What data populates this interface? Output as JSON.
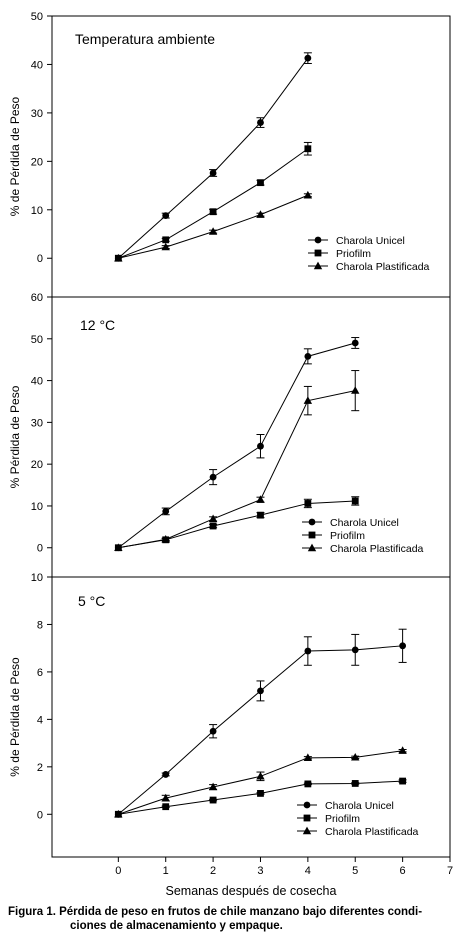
{
  "x_axis": {
    "label": "Semanas después de cosecha",
    "ticks": [
      "0",
      "1",
      "2",
      "3",
      "4",
      "5",
      "6",
      "7"
    ],
    "range": [
      -1.4,
      7
    ]
  },
  "caption": {
    "line1": "Figura 1. Pérdida de peso en frutos de chile manzano bajo diferentes condi-",
    "line2": "ciones de almacenamiento y empaque."
  },
  "legend_entries": [
    "Charola Unicel",
    "Priofilm",
    "Charola Plastificada"
  ],
  "chart_data": [
    {
      "type": "line",
      "title": "Temperatura ambiente",
      "ylabel": "% de Pérdida de Peso",
      "ylim": [
        -8,
        50
      ],
      "yticks": [
        0,
        10,
        20,
        30,
        40,
        50
      ],
      "legend_position": "lower-right",
      "series": [
        {
          "name": "Charola Unicel",
          "marker": "circle",
          "x": [
            0,
            1,
            2,
            3,
            4
          ],
          "y": [
            0,
            8.8,
            17.6,
            28.0,
            41.3
          ],
          "err": [
            0,
            0.5,
            0.7,
            1.0,
            1.1
          ]
        },
        {
          "name": "Priofilm",
          "marker": "square",
          "x": [
            0,
            1,
            2,
            3,
            4
          ],
          "y": [
            0,
            3.8,
            9.6,
            15.6,
            22.6
          ],
          "err": [
            0,
            0.3,
            0.5,
            0.5,
            1.3
          ]
        },
        {
          "name": "Charola Plastificada",
          "marker": "triangle",
          "x": [
            0,
            1,
            2,
            3,
            4
          ],
          "y": [
            0,
            2.3,
            5.5,
            9.0,
            13.0
          ],
          "err": [
            0,
            0.3,
            0.3,
            0.3,
            0.3
          ]
        }
      ]
    },
    {
      "type": "line",
      "title": "12 °C",
      "ylabel": "% Pérdida de Peso",
      "ylim": [
        -7,
        60
      ],
      "yticks": [
        0,
        10,
        20,
        30,
        40,
        50,
        60
      ],
      "legend_position": "lower-right",
      "series": [
        {
          "name": "Charola Unicel",
          "marker": "circle",
          "x": [
            0,
            1,
            2,
            3,
            4,
            5
          ],
          "y": [
            0,
            8.7,
            16.9,
            24.3,
            45.8,
            49.0
          ],
          "err": [
            0,
            0.8,
            1.8,
            2.8,
            1.8,
            1.3
          ]
        },
        {
          "name": "Priofilm",
          "marker": "square",
          "x": [
            0,
            1,
            2,
            3,
            4,
            5
          ],
          "y": [
            0,
            1.9,
            5.2,
            7.8,
            10.6,
            11.2
          ],
          "err": [
            0,
            0.3,
            0.4,
            0.6,
            1.0,
            1.0
          ]
        },
        {
          "name": "Charola Plastificada",
          "marker": "triangle",
          "x": [
            0,
            1,
            2,
            3,
            4,
            5
          ],
          "y": [
            0,
            2.0,
            6.9,
            11.5,
            35.2,
            37.6
          ],
          "err": [
            0,
            0.3,
            0.5,
            0.6,
            3.4,
            4.8
          ]
        }
      ]
    },
    {
      "type": "line",
      "title": "5 °C",
      "ylabel": "% de Pérdida de Peso",
      "ylim": [
        -1.8,
        10
      ],
      "yticks": [
        0,
        2,
        4,
        6,
        8,
        10
      ],
      "legend_position": "lower-right",
      "series": [
        {
          "name": "Charola Unicel",
          "marker": "circle",
          "x": [
            0,
            1,
            2,
            3,
            4,
            5,
            6
          ],
          "y": [
            0,
            1.68,
            3.5,
            5.2,
            6.88,
            6.93,
            7.1
          ],
          "err": [
            0,
            0.06,
            0.28,
            0.42,
            0.6,
            0.65,
            0.7
          ]
        },
        {
          "name": "Priofilm",
          "marker": "square",
          "x": [
            0,
            1,
            2,
            3,
            4,
            5,
            6
          ],
          "y": [
            0,
            0.32,
            0.6,
            0.88,
            1.28,
            1.3,
            1.4
          ],
          "err": [
            0,
            0.03,
            0.03,
            0.03,
            0.03,
            0.03,
            0.05
          ]
        },
        {
          "name": "Charola Plastificada",
          "marker": "triangle",
          "x": [
            0,
            1,
            2,
            3,
            4,
            5,
            6
          ],
          "y": [
            0,
            0.68,
            1.15,
            1.6,
            2.38,
            2.4,
            2.68
          ],
          "err": [
            0,
            0.12,
            0.1,
            0.18,
            0.05,
            0.05,
            0.05
          ]
        }
      ]
    }
  ]
}
